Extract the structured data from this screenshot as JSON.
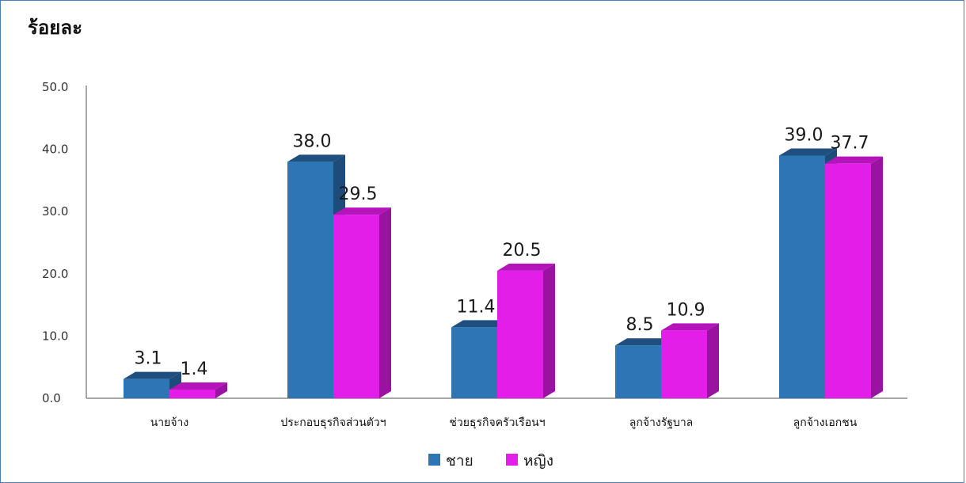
{
  "chart_data": {
    "type": "bar",
    "title": "",
    "ylabel": "ร้อยละ",
    "xlabel": "",
    "ylim": [
      0,
      50
    ],
    "yticks": [
      "0.0",
      "10.0",
      "20.0",
      "30.0",
      "40.0",
      "50.0"
    ],
    "categories": [
      "นายจ้าง",
      "ประกอบธุรกิจส่วนตัวฯ",
      "ช่วยธุรกิจครัวเรือนฯ",
      "ลูกจ้างรัฐบาล",
      "ลูกจ้างเอกชน"
    ],
    "series": [
      {
        "name": "ชาย",
        "values": [
          3.1,
          38.0,
          11.4,
          8.5,
          39.0
        ],
        "labels": [
          "3.1",
          "38.0",
          "11.4",
          "8.5",
          "39.0"
        ],
        "color": "#2e75b6",
        "top_color": "#1f4f7f",
        "side_color": "#1d4b7a"
      },
      {
        "name": "หญิง",
        "values": [
          1.4,
          29.5,
          20.5,
          10.9,
          37.7
        ],
        "labels": [
          "1.4",
          "29.5",
          "20.5",
          "10.9",
          "37.7"
        ],
        "color": "#e31ee8",
        "top_color": "#b514bb",
        "side_color": "#9a12a0"
      }
    ],
    "grid": false,
    "legend_position": "bottom",
    "style": "3d-bar"
  }
}
